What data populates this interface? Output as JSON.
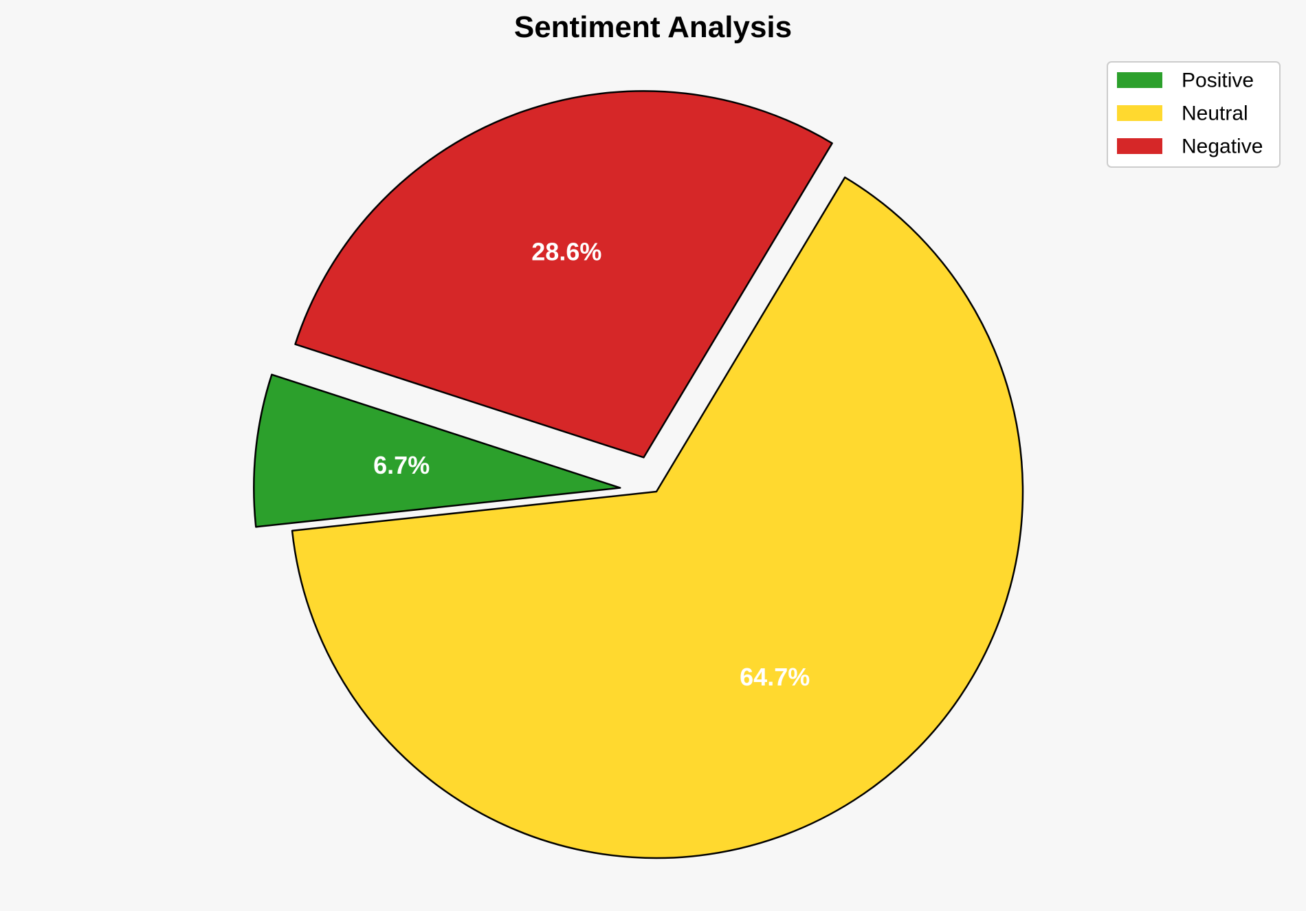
{
  "chart_data": {
    "type": "pie",
    "title": "Sentiment Analysis",
    "start_angle_deg": 162,
    "counterclockwise": true,
    "legend_position": "top-right",
    "slices": [
      {
        "label": "Positive",
        "value": 6.7,
        "value_label": "6.7%",
        "color": "#2ca02c",
        "exploded": true
      },
      {
        "label": "Neutral",
        "value": 64.7,
        "value_label": "64.7%",
        "color": "#ffd92f",
        "exploded": false
      },
      {
        "label": "Negative",
        "value": 28.6,
        "value_label": "28.6%",
        "color": "#d62728",
        "exploded": true
      }
    ]
  }
}
